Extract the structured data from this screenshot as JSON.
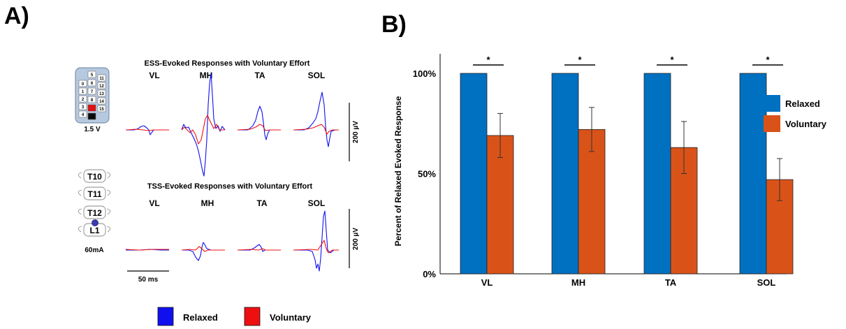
{
  "panel_a": {
    "label": "A)",
    "ess": {
      "title": "ESS-Evoked Responses with Voluntary Effort",
      "voltage": "1.5 V",
      "muscles": [
        "VL",
        "MH",
        "TA",
        "SOL"
      ],
      "electrodes_left": [
        "0",
        "1",
        "2",
        "3",
        "4"
      ],
      "electrodes_mid": [
        "5",
        "6",
        "7",
        "8",
        "9",
        "10"
      ],
      "electrodes_right": [
        "11",
        "12",
        "13",
        "14",
        "15"
      ],
      "scale_label": "200 µV"
    },
    "tss": {
      "title": "TSS-Evoked Responses with Voluntary Effort",
      "current": "60mA",
      "vertebrae": [
        "T10",
        "T11",
        "T12",
        "L1"
      ],
      "muscles": [
        "VL",
        "MH",
        "TA",
        "SOL"
      ],
      "scale_label": "200 µV"
    },
    "time_scale_label": "50 ms",
    "legend": [
      {
        "label": "Relaxed",
        "color": "#1010ee"
      },
      {
        "label": "Voluntary",
        "color": "#ee1010"
      }
    ]
  },
  "panel_b": {
    "label": "B)",
    "significance_marker": "*",
    "chart_data": {
      "type": "bar",
      "categories": [
        "VL",
        "MH",
        "TA",
        "SOL"
      ],
      "series": [
        {
          "name": "Relaxed",
          "color": "#0070c0",
          "values": [
            100,
            100,
            100,
            100
          ]
        },
        {
          "name": "Voluntary",
          "color": "#d95319",
          "values": [
            69,
            72,
            63,
            47
          ],
          "error": [
            11,
            11,
            13,
            10.5
          ]
        }
      ],
      "ylabel": "Percent of Relaxed Evoked Response",
      "ylim": [
        0,
        100
      ],
      "yticks": [
        0,
        50,
        100
      ],
      "ytick_labels": [
        "0%",
        "50%",
        "100%"
      ],
      "significant": [
        true,
        true,
        true,
        true
      ],
      "legend_position": "top-right"
    }
  }
}
